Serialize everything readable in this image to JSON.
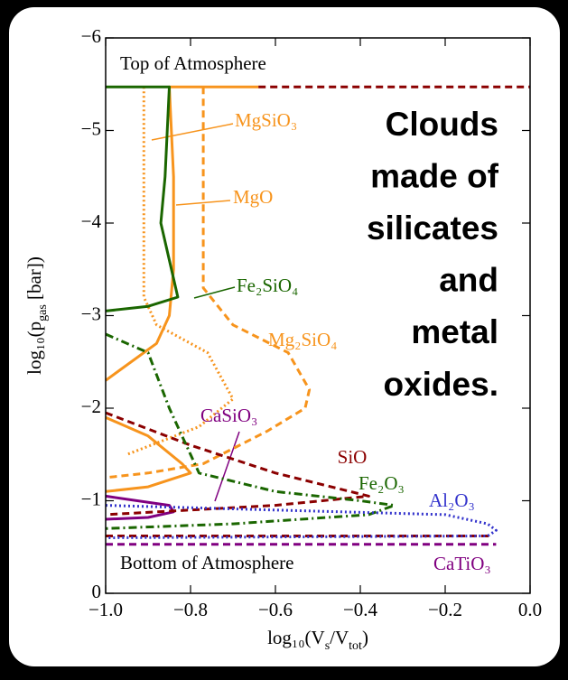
{
  "chart_data": {
    "type": "line",
    "x_label": [
      "log₁₀(V",
      "s",
      "/V",
      "tot",
      ")"
    ],
    "y_label": [
      "log₁₀(p",
      "gas",
      " [bar])"
    ],
    "xlim": [
      -1.0,
      0.0
    ],
    "ylim": [
      0,
      -6
    ],
    "xticks": [
      {
        "value": -1.0,
        "label": "−1.0"
      },
      {
        "value": -0.8,
        "label": "−0.8"
      },
      {
        "value": -0.6,
        "label": "−0.6"
      },
      {
        "value": -0.4,
        "label": "−0.4"
      },
      {
        "value": -0.2,
        "label": "−0.2"
      },
      {
        "value": 0.0,
        "label": "0.0"
      }
    ],
    "yticks": [
      0,
      {
        "value": -1,
        "label": "−1"
      },
      {
        "value": -2,
        "label": "−2"
      },
      {
        "value": -3,
        "label": "−3"
      },
      {
        "value": -4,
        "label": "−4"
      },
      {
        "value": -5,
        "label": "−5"
      },
      {
        "value": -6,
        "label": "−6"
      }
    ],
    "grid": false,
    "annotations": [
      "Top of Atmosphere",
      "Bottom of Atmosphere"
    ],
    "headline": [
      "Clouds",
      "made of",
      "silicates",
      "and",
      "metal",
      "oxides."
    ],
    "series": [
      {
        "name": "MgSiO₃",
        "color": "#f7941d",
        "dash": "dotted",
        "x": [
          -0.91,
          -0.91,
          -0.88,
          -0.76,
          -0.7,
          -0.78,
          -0.95
        ],
        "values": [
          -5.47,
          -3.2,
          -2.9,
          -2.6,
          -2.1,
          -1.8,
          -1.5
        ]
      },
      {
        "name": "MgO",
        "color": "#f7941d",
        "dash": "solid",
        "x": [
          -0.64,
          -0.85,
          -0.84,
          -0.84,
          -0.85,
          -0.88,
          -0.97,
          -1.0,
          null,
          -1.0,
          -0.9,
          -0.82,
          -0.8,
          -0.9,
          -1.0
        ],
        "values": [
          -5.47,
          -5.47,
          -4.5,
          -3.5,
          -3.0,
          -2.7,
          -2.4,
          -2.3,
          null,
          -1.9,
          -1.7,
          -1.4,
          -1.3,
          -1.15,
          -1.1
        ]
      },
      {
        "name": "Fe₂SiO₄",
        "color": "#1a6600",
        "dash": "solid",
        "x": [
          -1.0,
          -0.85,
          -0.86,
          -0.87,
          -0.85,
          -0.83,
          -0.9,
          -1.0
        ],
        "values": [
          -5.47,
          -5.47,
          -4.5,
          -4.0,
          -3.6,
          -3.2,
          -3.1,
          -3.05
        ]
      },
      {
        "name": "Mg₂SiO₄",
        "color": "#f7941d",
        "dash": "dashed",
        "x": [
          -0.77,
          -0.77,
          -0.7,
          -0.57,
          -0.52,
          -0.53,
          -0.62,
          -0.77,
          -0.9,
          -1.0
        ],
        "values": [
          -5.47,
          -3.3,
          -2.9,
          -2.6,
          -2.2,
          -2.0,
          -1.75,
          -1.4,
          -1.3,
          -1.25
        ]
      },
      {
        "name": "CaSiO₃",
        "color": "#800080",
        "dash": "solid",
        "x": [
          -1.0,
          -0.85,
          -0.84,
          -0.9,
          -1.0
        ],
        "values": [
          -1.05,
          -0.95,
          -0.88,
          -0.82,
          -0.8
        ]
      },
      {
        "name": "SiO",
        "color": "#8b0000",
        "dash": "dashed",
        "x": [
          -0.64,
          0.0,
          null,
          -1.0,
          -0.8,
          -0.6,
          -0.38,
          -0.6,
          -1.0,
          null,
          -1.0,
          -0.09
        ],
        "values": [
          -5.47,
          -5.47,
          null,
          -1.95,
          -1.6,
          -1.3,
          -1.05,
          -0.95,
          -0.85,
          null,
          -0.62,
          -0.62
        ]
      },
      {
        "name": "Fe₂O₃",
        "color": "#1a6600",
        "dash": "dashdot",
        "x": [
          -1.0,
          -0.9,
          -0.85,
          -0.8,
          -0.78,
          -0.6,
          -0.4,
          -0.32,
          -0.38,
          -0.7,
          -1.0
        ],
        "values": [
          -2.8,
          -2.6,
          -2.0,
          -1.5,
          -1.3,
          -1.1,
          -1.0,
          -0.95,
          -0.85,
          -0.75,
          -0.7
        ]
      },
      {
        "name": "Al₂O₃",
        "color": "#3333cc",
        "dash": "dotted",
        "x": [
          -1.0,
          -0.6,
          -0.2,
          -0.1,
          -0.08,
          -0.1,
          -1.0
        ],
        "values": [
          -0.95,
          -0.9,
          -0.85,
          -0.75,
          -0.68,
          -0.62,
          -0.6
        ]
      },
      {
        "name": "CaTiO₃",
        "color": "#800080",
        "dash": "dashed",
        "x": [
          -1.0,
          -0.08
        ],
        "values": [
          -0.53,
          -0.53
        ]
      }
    ]
  }
}
